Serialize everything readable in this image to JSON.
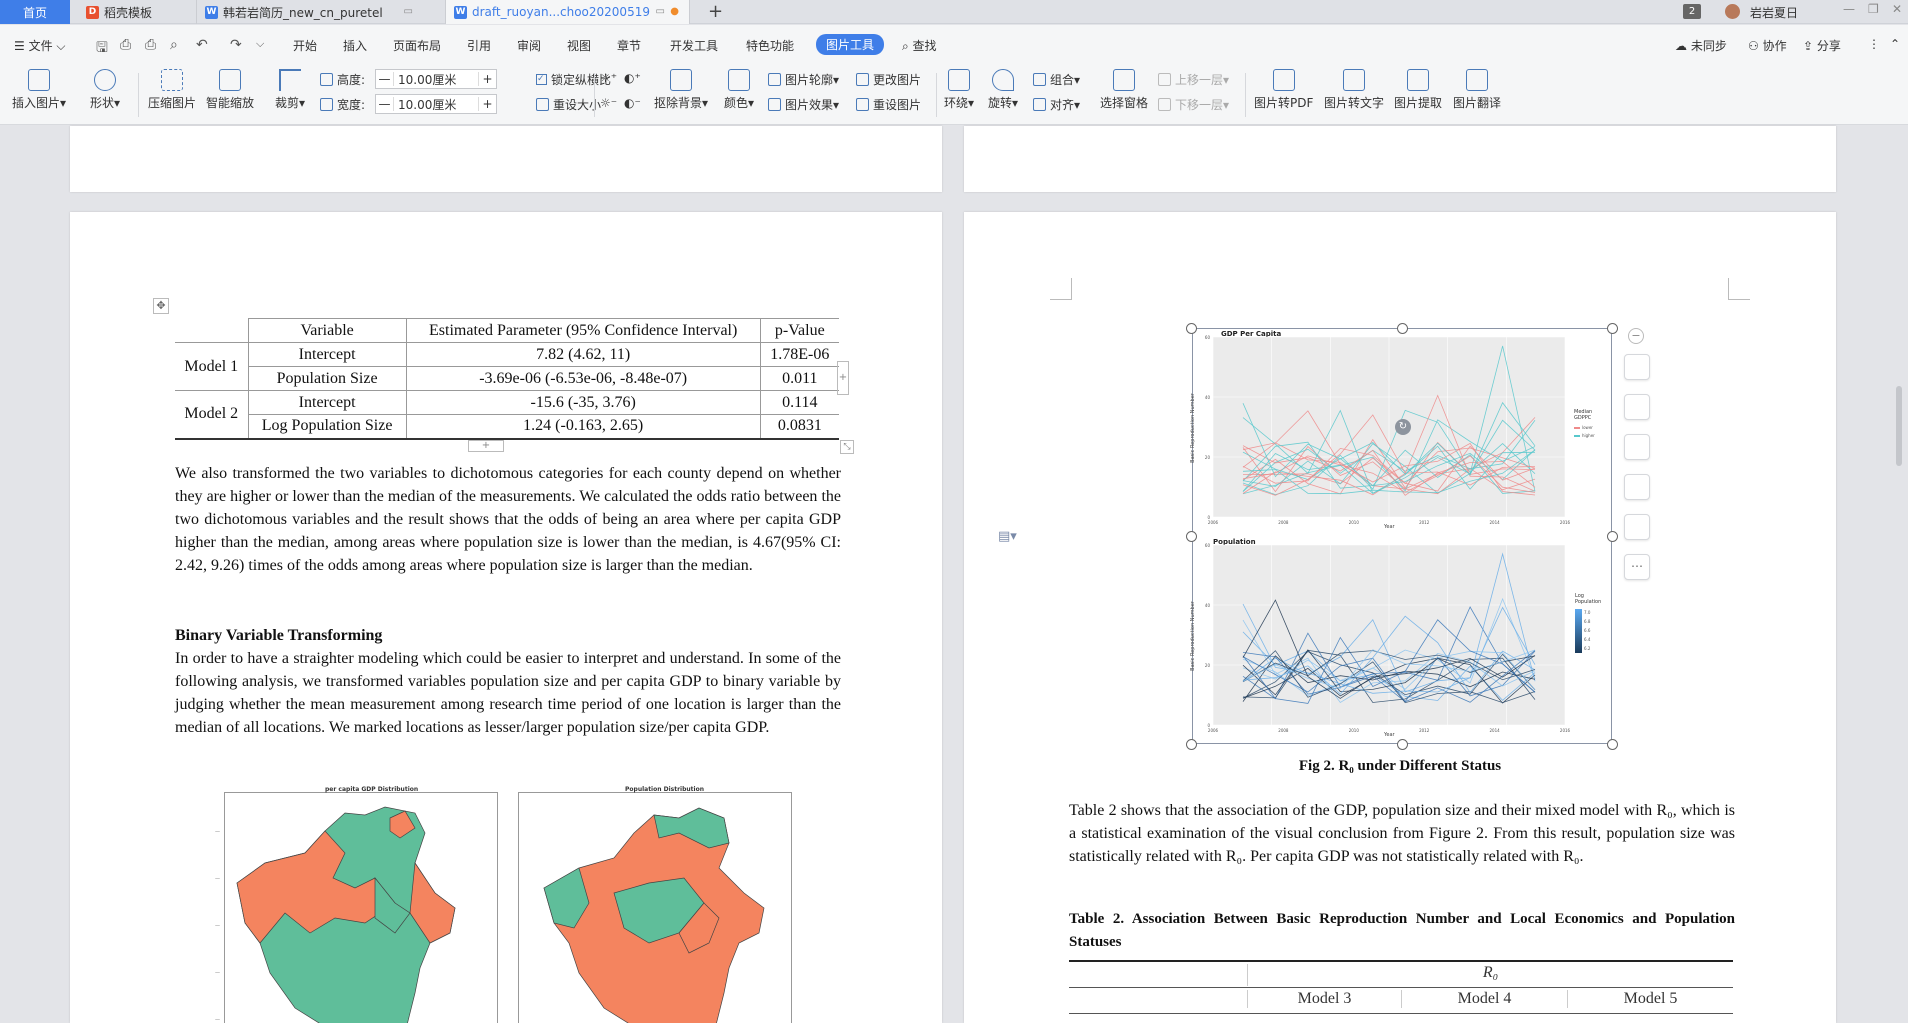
{
  "tabs": [
    {
      "label": "首页"
    },
    {
      "label": "稻壳模板"
    },
    {
      "label": "韩若岩简历_new_cn_puretel"
    },
    {
      "label": "draft_ruoyan...choo20200519"
    }
  ],
  "tabbar_right": {
    "badge": "2",
    "user": "岩岩夏日"
  },
  "menu": {
    "file": "文件",
    "items": [
      "开始",
      "插入",
      "页面布局",
      "引用",
      "审阅",
      "视图",
      "章节",
      "开发工具",
      "特色功能",
      "图片工具"
    ],
    "search": "查找",
    "sync": "未同步",
    "collab": "协作",
    "share": "分享"
  },
  "ribbon": {
    "insert_picture": "插入图片",
    "shape": "形状",
    "compress": "压缩图片",
    "smart_zoom": "智能缩放",
    "crop": "裁剪",
    "height_label": "高度:",
    "height_value": "10.00厘米",
    "width_label": "宽度:",
    "width_value": "10.00厘米",
    "lock_ratio": "锁定纵横比",
    "reset_size": "重设大小",
    "remove_bg": "抠除背景",
    "color": "颜色",
    "outline": "图片轮廓",
    "effect": "图片效果",
    "change_pic": "更改图片",
    "reset_pic": "重设图片",
    "wrap": "环绕",
    "rotate": "旋转",
    "group": "组合",
    "align": "对齐",
    "select_pane": "选择窗格",
    "bring_forward": "上移一层",
    "send_backward": "下移一层",
    "to_pdf": "图片转PDF",
    "to_text": "图片转文字",
    "extract": "图片提取",
    "translate": "图片翻译"
  },
  "table1": {
    "headers": [
      "Variable",
      "Estimated Parameter (95% Confidence Interval)",
      "p-Value"
    ],
    "model1": "Model 1",
    "model2": "Model 2",
    "rows": [
      {
        "variable": "Intercept",
        "estimate": "7.82 (4.62, 11)",
        "p": "1.78E-06"
      },
      {
        "variable": "Population Size",
        "estimate": "-3.69e-06 (-6.53e-06, -8.48e-07)",
        "p": "0.011"
      },
      {
        "variable": "Intercept",
        "estimate": "-15.6 (-35, 3.76)",
        "p": "0.114"
      },
      {
        "variable": "Log Population Size",
        "estimate": "1.24 (-0.163, 2.65)",
        "p": "0.0831"
      }
    ]
  },
  "left_page": {
    "para1": "We also transformed the two variables to dichotomous categories for each county depend on whether they are higher or lower than the median of the measurements. We calculated the odds ratio between the two dichotomous variables and the result shows that the odds of being an area where per capita GDP higher than the median, among areas where population size is lower than the median, is 4.67(95% CI: 2.42, 9.26) times of the odds among areas where population size is larger than the median.",
    "heading": "Binary Variable Transforming",
    "para2": "In order to have a straighter modeling which could be easier to interpret and understand. In some of the following analysis, we transformed variables population size and per capita GDP to binary variable by judging whether the mean measurement among research time period of one location is larger than the median of all locations. We marked locations as lesser/larger population size/per capita GDP.",
    "map1_title": "per capita GDP Distribution",
    "map2_title": "Population Distribution"
  },
  "figure2": {
    "panel1_title": "GDP Per Capita",
    "panel2_title": "Population",
    "ylabel": "Basic Reproduction Number",
    "xlabel": "Year",
    "legend1_title": "Median GDPPC",
    "legend1_items": [
      "lower",
      "higher"
    ],
    "legend2_title": "Log Population",
    "legend2_ticks": [
      "7.0",
      "6.8",
      "6.6",
      "6.4",
      "6.2"
    ],
    "x_ticks": [
      "2006",
      "2008",
      "2010",
      "2012",
      "2014",
      "2016"
    ],
    "y_ticks": [
      "60",
      "40",
      "20",
      "0"
    ],
    "caption": "Fig 2. R₀ under Different Status"
  },
  "right_page": {
    "para": "Table 2 shows that the association of the GDP, population size and their mixed model with R₀, which is a statistical examination of the visual conclusion from Figure 2. From this result, population size was statistically related with R₀. Per capita GDP was not statistically related with R₀.",
    "table2_title": "Table 2. Association Between Basic Reproduction Number and Local Economics and Population Statuses",
    "r0": "R₀",
    "models": [
      "Model 3",
      "Model 4",
      "Model 5"
    ]
  },
  "colors": {
    "accent": "#3f7ee8",
    "orange": "#f4845f",
    "green": "#5fbe9a",
    "red_line": "#ef8a8a",
    "teal_line": "#58c8cc"
  }
}
